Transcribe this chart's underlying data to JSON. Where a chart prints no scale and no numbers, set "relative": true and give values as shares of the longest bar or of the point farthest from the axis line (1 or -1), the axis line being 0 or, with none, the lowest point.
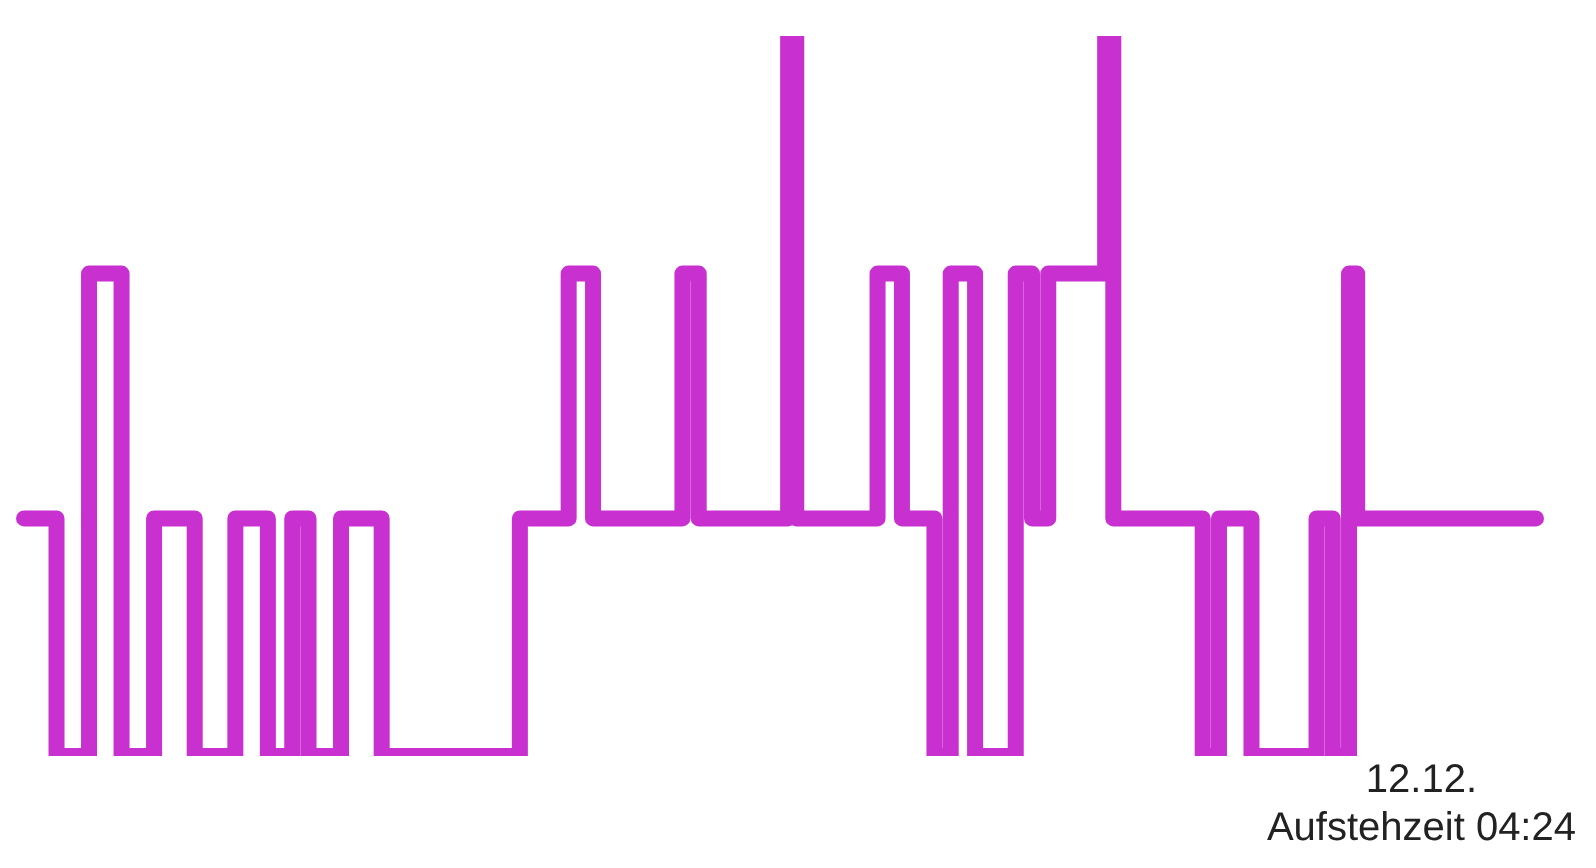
{
  "chart_data": {
    "type": "step",
    "relative": true,
    "color": "#c930d0",
    "categories": [
      null,
      null,
      null,
      null,
      null,
      null,
      null,
      null,
      null,
      null,
      null,
      null,
      null,
      null,
      null,
      null,
      null,
      null,
      null,
      null,
      null,
      null,
      null,
      null,
      null,
      null,
      null,
      null,
      null,
      null,
      null,
      null,
      null,
      null,
      null,
      null,
      null,
      null,
      null,
      null,
      null,
      null,
      null,
      null,
      null,
      null,
      null,
      null,
      null,
      null,
      null,
      null,
      null,
      null,
      null,
      null,
      null,
      null,
      null,
      null,
      null,
      null,
      null,
      null,
      null,
      null,
      null,
      null,
      null,
      null,
      null,
      null,
      null,
      null,
      null,
      null,
      null,
      null,
      null,
      null,
      null,
      null,
      null,
      null,
      null,
      null,
      null,
      null,
      null,
      null,
      null,
      null,
      null,
      null,
      null,
      null,
      null,
      null,
      null,
      null,
      null,
      null,
      null,
      null,
      null,
      null,
      null,
      null,
      null,
      null,
      null,
      null,
      null,
      null,
      null,
      null,
      null,
      null,
      null,
      null,
      null,
      null,
      null,
      null,
      null,
      null,
      null,
      null,
      null,
      null,
      null,
      null,
      null,
      null,
      null,
      null,
      null,
      null,
      null,
      null,
      null,
      null,
      null,
      null,
      null,
      null,
      null,
      null,
      null,
      null,
      null,
      null,
      null,
      null,
      null,
      null,
      null,
      null,
      null,
      null,
      null,
      null,
      null,
      null,
      null,
      null,
      null,
      null,
      null,
      null,
      null,
      null,
      null,
      null,
      null,
      null,
      null,
      null,
      null,
      null,
      null,
      null,
      null,
      null,
      null,
      null,
      null
    ],
    "values": [
      0.33,
      0.33,
      0.33,
      0.33,
      0,
      0,
      0,
      0,
      0.67,
      0.67,
      0.67,
      0.67,
      0,
      0,
      0,
      0,
      0.33,
      0.33,
      0.33,
      0.33,
      0.33,
      0,
      0,
      0,
      0,
      0,
      0.33,
      0.33,
      0.33,
      0.33,
      0,
      0,
      0,
      0.33,
      0.33,
      0,
      0,
      0,
      0,
      0.33,
      0.33,
      0.33,
      0.33,
      0.33,
      0,
      0,
      0,
      0,
      0,
      0,
      0,
      0,
      0,
      0,
      0,
      0,
      0,
      0,
      0,
      0,
      0,
      0.33,
      0.33,
      0.33,
      0.33,
      0.33,
      0.33,
      0.67,
      0.67,
      0.67,
      0.33,
      0.33,
      0.33,
      0.33,
      0.33,
      0.33,
      0.33,
      0.33,
      0.33,
      0.33,
      0.33,
      0.67,
      0.67,
      0.33,
      0.33,
      0.33,
      0.33,
      0.33,
      0.33,
      0.33,
      0.33,
      0.33,
      0.33,
      0.33,
      1,
      0.33,
      0.33,
      0.33,
      0.33,
      0.33,
      0.33,
      0.33,
      0.33,
      0.33,
      0.33,
      0.67,
      0.67,
      0.67,
      0.33,
      0.33,
      0.33,
      0.33,
      0,
      0,
      0.67,
      0.67,
      0.67,
      0,
      0,
      0,
      0,
      0,
      0.67,
      0.67,
      0.33,
      0.33,
      0.67,
      0.67,
      0.67,
      0.67,
      0.67,
      0.67,
      0.67,
      1,
      0.33,
      0.33,
      0.33,
      0.33,
      0.33,
      0.33,
      0.33,
      0.33,
      0.33,
      0.33,
      0.33,
      0,
      0,
      0.33,
      0.33,
      0.33,
      0.33,
      0,
      0,
      0,
      0,
      0,
      0,
      0,
      0,
      0.33,
      0.33,
      0,
      0,
      0.67,
      0.33,
      0.33,
      0.33,
      0.33,
      0.33,
      0.33,
      0.33,
      0.33,
      0.33,
      0.33,
      0.33,
      0.33,
      0.33,
      0.33,
      0.33,
      0.33,
      0.33,
      0.33,
      0.33,
      0.33,
      0.33,
      0.33,
      0.33
    ],
    "annotations": [
      "12.12.",
      "Aufstehzeit 04:24"
    ]
  }
}
